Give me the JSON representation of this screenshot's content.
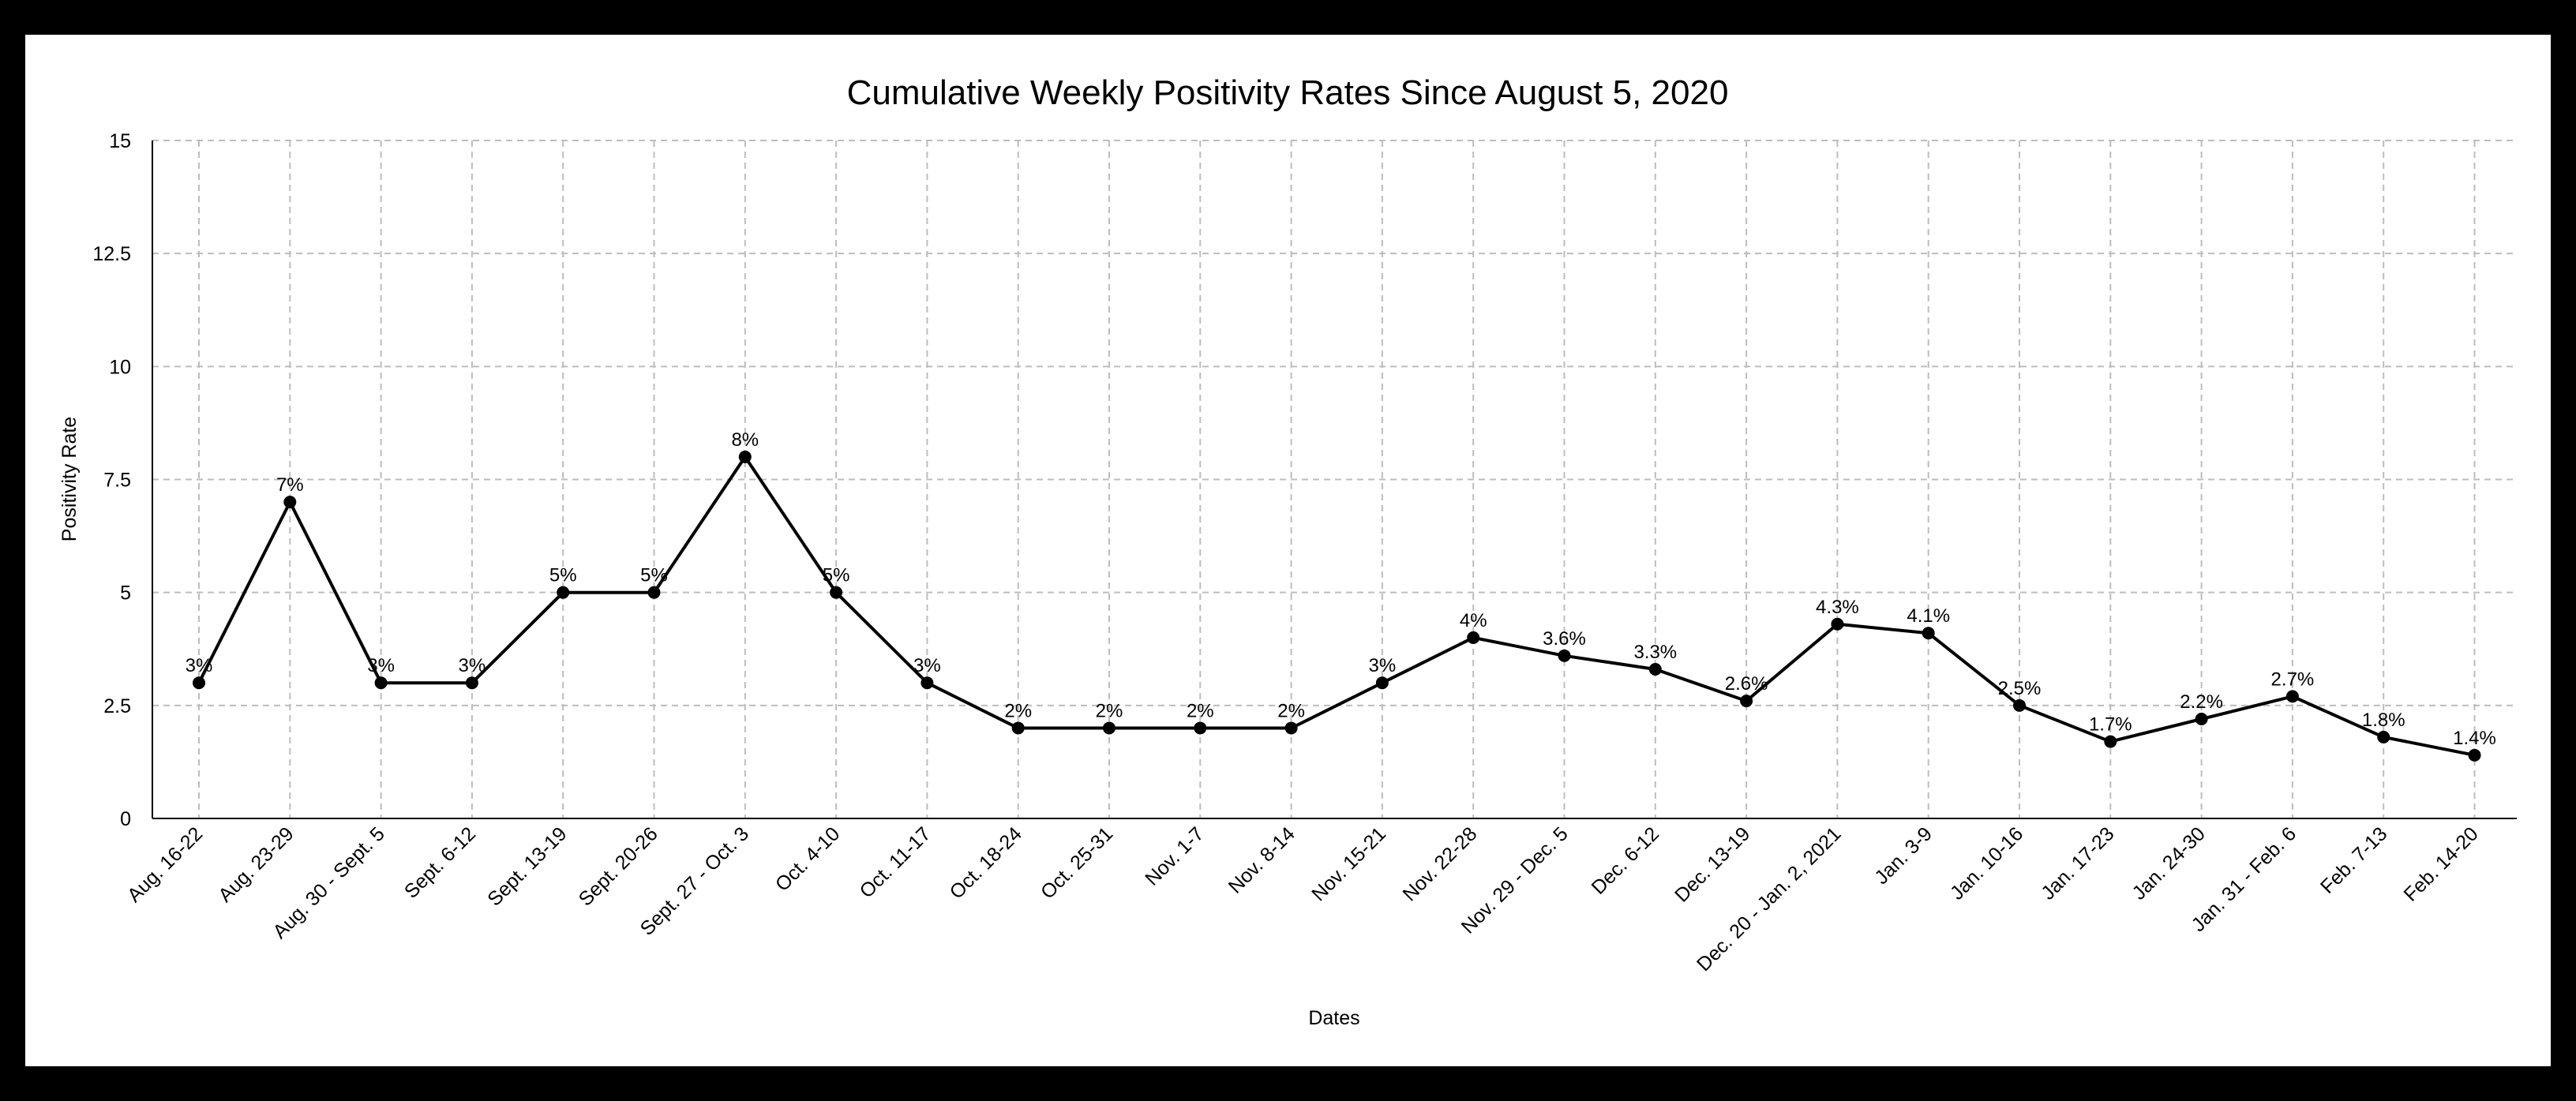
{
  "chart_data": {
    "type": "line",
    "title": "Cumulative Weekly Positivity Rates Since August 5, 2020",
    "xlabel": "Dates",
    "ylabel": "Positivity Rate",
    "ylim": [
      0,
      15
    ],
    "yticks": [
      "0",
      "2.5",
      "5",
      "7.5",
      "10",
      "12.5",
      "15"
    ],
    "ytick_values": [
      0,
      2.5,
      5,
      7.5,
      10,
      12.5,
      15
    ],
    "grid": true,
    "legend": "none",
    "categories": [
      "Aug. 16-22",
      "Aug. 23-29",
      "Aug. 30 - Sept. 5",
      "Sept. 6-12",
      "Sept. 13-19",
      "Sept. 20-26",
      "Sept. 27 - Oct. 3",
      "Oct. 4-10",
      "Oct. 11-17",
      "Oct. 18-24",
      "Oct. 25-31",
      "Nov. 1-7",
      "Nov. 8-14",
      "Nov. 15-21",
      "Nov. 22-28",
      "Nov. 29 - Dec. 5",
      "Dec. 6-12",
      "Dec. 13-19",
      "Dec. 20 - Jan. 2, 2021",
      "Jan. 3-9",
      "Jan. 10-16",
      "Jan. 17-23",
      "Jan. 24-30",
      "Jan. 31 - Feb. 6",
      "Feb. 7-13",
      "Feb. 14-20"
    ],
    "series": [
      {
        "values": [
          3,
          7,
          3,
          3,
          5,
          5,
          8,
          5,
          3,
          2,
          2,
          2,
          2,
          3,
          4,
          3.6,
          3.3,
          2.6,
          4.3,
          4.1,
          2.5,
          1.7,
          2.2,
          2.7,
          1.8,
          1.4
        ],
        "labels": [
          "3%",
          "7%",
          "3%",
          "3%",
          "5%",
          "5%",
          "8%",
          "5%",
          "3%",
          "2%",
          "2%",
          "2%",
          "2%",
          "3%",
          "4%",
          "3.6%",
          "3.3%",
          "2.6%",
          "4.3%",
          "4.1%",
          "2.5%",
          "1.7%",
          "2.2%",
          "2.7%",
          "1.8%",
          "1.4%"
        ],
        "color": "#000000"
      }
    ],
    "grid_color": "#bdbdbd"
  }
}
